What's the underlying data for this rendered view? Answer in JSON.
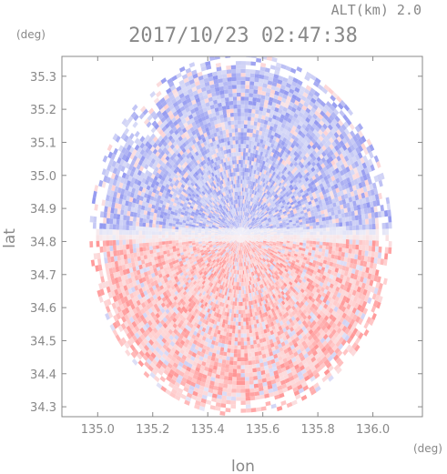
{
  "header": {
    "altitude_label": "ALT(km) 2.0",
    "timestamp": "2017/10/23 02:47:38"
  },
  "chart_data": {
    "type": "heatmap",
    "title": "2017/10/23 02:47:38",
    "xlabel": "lon",
    "ylabel": "lat",
    "x_unit": "(deg)",
    "y_unit": "(deg)",
    "xlim": [
      134.87,
      136.18
    ],
    "ylim": [
      34.27,
      35.36
    ],
    "x_ticks": [
      135.0,
      135.2,
      135.4,
      135.6,
      135.8,
      136.0
    ],
    "x_tick_labels": [
      "135.0",
      "135.2",
      "135.4",
      "135.6",
      "135.8",
      "136.0"
    ],
    "y_ticks": [
      34.3,
      34.4,
      34.5,
      34.6,
      34.7,
      34.8,
      34.9,
      35.0,
      35.1,
      35.2,
      35.3
    ],
    "y_tick_labels": [
      "34.3",
      "34.4",
      "34.5",
      "34.6",
      "34.7",
      "34.8",
      "34.9",
      "35.0",
      "35.1",
      "35.2",
      "35.3"
    ],
    "radar_center": {
      "lon": 135.52,
      "lat": 34.82
    },
    "max_range_deg": 0.55,
    "colors": {
      "positive_strong": "#ff6b6b",
      "positive_weak": "#ffd0d0",
      "neutral": "#f4f4f8",
      "negative_weak": "#cdd0f6",
      "negative_strong": "#6a72ec",
      "axis": "#888888"
    },
    "grid": false
  }
}
